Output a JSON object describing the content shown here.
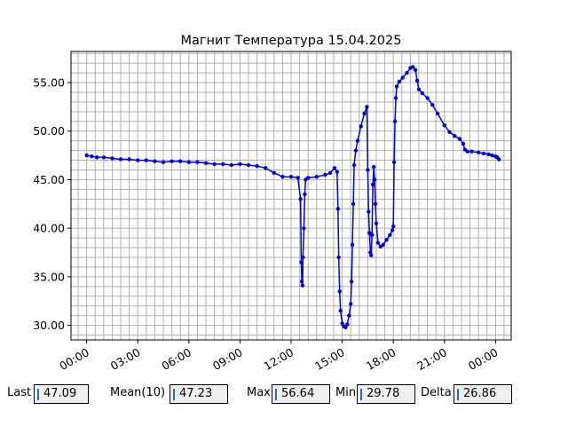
{
  "chart_data": {
    "type": "line",
    "title": "Магнит Температура 15.04.2025",
    "xlabel": "",
    "ylabel": "",
    "x_unit": "hours since 00:00 of 15.04.2025",
    "xlim": [
      -0.92,
      24.92
    ],
    "ylim": [
      28.5,
      58.2
    ],
    "x_ticks": [
      0,
      3,
      6,
      9,
      12,
      15,
      18,
      21,
      24
    ],
    "x_tick_labels": [
      "00:00",
      "03:00",
      "06:00",
      "09:00",
      "12:00",
      "15:00",
      "18:00",
      "21:00",
      "00:00"
    ],
    "y_ticks": [
      30,
      35,
      40,
      45,
      50,
      55
    ],
    "y_tick_labels": [
      "30.00",
      "35.00",
      "40.00",
      "45.00",
      "50.00",
      "55.00"
    ],
    "grid": true,
    "line_color": "#0000ee",
    "series": [
      {
        "name": "",
        "points": [
          [
            0.0,
            47.5
          ],
          [
            0.3,
            47.4
          ],
          [
            0.6,
            47.3
          ],
          [
            1.0,
            47.3
          ],
          [
            1.5,
            47.2
          ],
          [
            2.0,
            47.1
          ],
          [
            2.5,
            47.1
          ],
          [
            3.0,
            47.0
          ],
          [
            3.5,
            47.0
          ],
          [
            4.0,
            46.9
          ],
          [
            4.5,
            46.8
          ],
          [
            5.0,
            46.9
          ],
          [
            5.5,
            46.9
          ],
          [
            6.0,
            46.8
          ],
          [
            6.5,
            46.8
          ],
          [
            7.0,
            46.7
          ],
          [
            7.5,
            46.6
          ],
          [
            8.0,
            46.6
          ],
          [
            8.5,
            46.5
          ],
          [
            9.0,
            46.6
          ],
          [
            9.5,
            46.5
          ],
          [
            10.0,
            46.4
          ],
          [
            10.5,
            46.2
          ],
          [
            11.0,
            45.7
          ],
          [
            11.5,
            45.3
          ],
          [
            12.0,
            45.3
          ],
          [
            12.4,
            45.2
          ],
          [
            12.55,
            43.0
          ],
          [
            12.6,
            36.5
          ],
          [
            12.63,
            34.5
          ],
          [
            12.67,
            34.1
          ],
          [
            12.7,
            37.0
          ],
          [
            12.75,
            40.0
          ],
          [
            12.8,
            43.5
          ],
          [
            12.85,
            45.0
          ],
          [
            13.0,
            45.2
          ],
          [
            13.5,
            45.3
          ],
          [
            14.0,
            45.5
          ],
          [
            14.3,
            45.7
          ],
          [
            14.55,
            46.2
          ],
          [
            14.7,
            45.8
          ],
          [
            14.75,
            42.0
          ],
          [
            14.8,
            37.0
          ],
          [
            14.85,
            33.5
          ],
          [
            14.9,
            31.5
          ],
          [
            15.0,
            30.2
          ],
          [
            15.1,
            29.9
          ],
          [
            15.2,
            29.8
          ],
          [
            15.3,
            30.1
          ],
          [
            15.4,
            31.0
          ],
          [
            15.5,
            32.2
          ],
          [
            15.55,
            34.5
          ],
          [
            15.6,
            38.3
          ],
          [
            15.65,
            42.5
          ],
          [
            15.7,
            46.5
          ],
          [
            15.8,
            48.0
          ],
          [
            15.9,
            49.0
          ],
          [
            16.1,
            50.5
          ],
          [
            16.3,
            51.8
          ],
          [
            16.45,
            52.5
          ],
          [
            16.5,
            46.0
          ],
          [
            16.55,
            41.7
          ],
          [
            16.6,
            39.5
          ],
          [
            16.65,
            37.5
          ],
          [
            16.7,
            37.2
          ],
          [
            16.75,
            39.3
          ],
          [
            16.8,
            44.5
          ],
          [
            16.85,
            46.3
          ],
          [
            16.9,
            45.0
          ],
          [
            16.95,
            42.5
          ],
          [
            17.0,
            40.5
          ],
          [
            17.1,
            38.5
          ],
          [
            17.25,
            38.1
          ],
          [
            17.4,
            38.3
          ],
          [
            17.6,
            38.8
          ],
          [
            17.8,
            39.3
          ],
          [
            17.95,
            39.8
          ],
          [
            18.0,
            40.2
          ],
          [
            18.05,
            46.8
          ],
          [
            18.1,
            51.0
          ],
          [
            18.15,
            53.4
          ],
          [
            18.2,
            54.6
          ],
          [
            18.35,
            55.1
          ],
          [
            18.55,
            55.5
          ],
          [
            18.8,
            56.0
          ],
          [
            19.0,
            56.5
          ],
          [
            19.15,
            56.6
          ],
          [
            19.3,
            56.3
          ],
          [
            19.4,
            55.2
          ],
          [
            19.5,
            54.3
          ],
          [
            19.7,
            53.9
          ],
          [
            20.0,
            53.4
          ],
          [
            20.3,
            52.7
          ],
          [
            20.6,
            51.8
          ],
          [
            21.0,
            50.6
          ],
          [
            21.3,
            49.9
          ],
          [
            21.6,
            49.5
          ],
          [
            21.9,
            49.2
          ],
          [
            22.1,
            48.7
          ],
          [
            22.2,
            48.1
          ],
          [
            22.35,
            47.9
          ],
          [
            22.6,
            47.9
          ],
          [
            23.0,
            47.8
          ],
          [
            23.3,
            47.7
          ],
          [
            23.6,
            47.6
          ],
          [
            23.8,
            47.5
          ],
          [
            24.0,
            47.4
          ],
          [
            24.1,
            47.3
          ],
          [
            24.2,
            47.09
          ]
        ]
      }
    ]
  },
  "stats": {
    "last": {
      "label": "Last",
      "value": "47.09"
    },
    "mean": {
      "label": "Mean(10)",
      "value": "47.23"
    },
    "max": {
      "label": "Max",
      "value": "56.64"
    },
    "min": {
      "label": "Min",
      "value": "29.78"
    },
    "delta": {
      "label": "Delta",
      "value": "26.86"
    }
  }
}
